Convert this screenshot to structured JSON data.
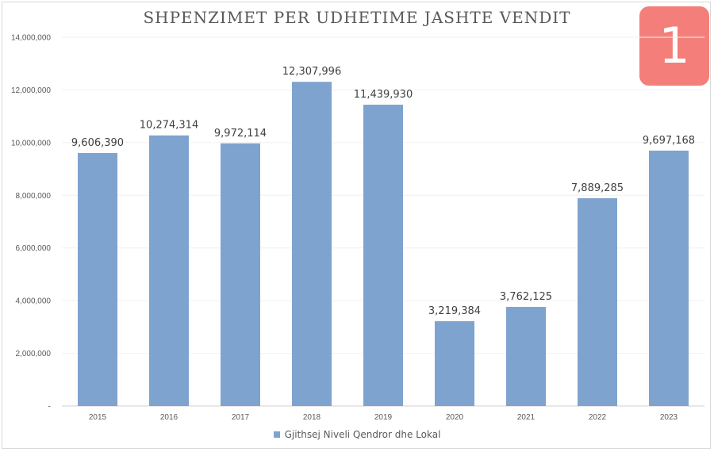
{
  "badge": {
    "number": "1"
  },
  "chart_data": {
    "type": "bar",
    "title": "SHPENZIMET PER UDHETIME JASHTE VENDIT",
    "categories": [
      "2015",
      "2016",
      "2017",
      "2018",
      "2019",
      "2020",
      "2021",
      "2022",
      "2023"
    ],
    "series": [
      {
        "name": "Gjithsej  Niveli Qendror dhe Lokal",
        "color": "#7fa3cf",
        "values": [
          9606390,
          10274314,
          9972114,
          12307996,
          11439930,
          3219384,
          3762125,
          7889285,
          9697168
        ],
        "value_labels": [
          "9,606,390",
          "10,274,314",
          "9,972,114",
          "12,307,996",
          "11,439,930",
          "3,219,384",
          "3,762,125",
          "7,889,285",
          "9,697,168"
        ]
      }
    ],
    "ylim": [
      0,
      14000000
    ],
    "y_ticks": [
      0,
      2000000,
      4000000,
      6000000,
      8000000,
      10000000,
      12000000,
      14000000
    ],
    "y_tick_labels": [
      "-",
      "2,000,000",
      "4,000,000",
      "6,000,000",
      "8,000,000",
      "10,000,000",
      "12,000,000",
      "14,000,000"
    ],
    "xlabel": "",
    "ylabel": "",
    "grid": true,
    "legend_position": "bottom"
  }
}
